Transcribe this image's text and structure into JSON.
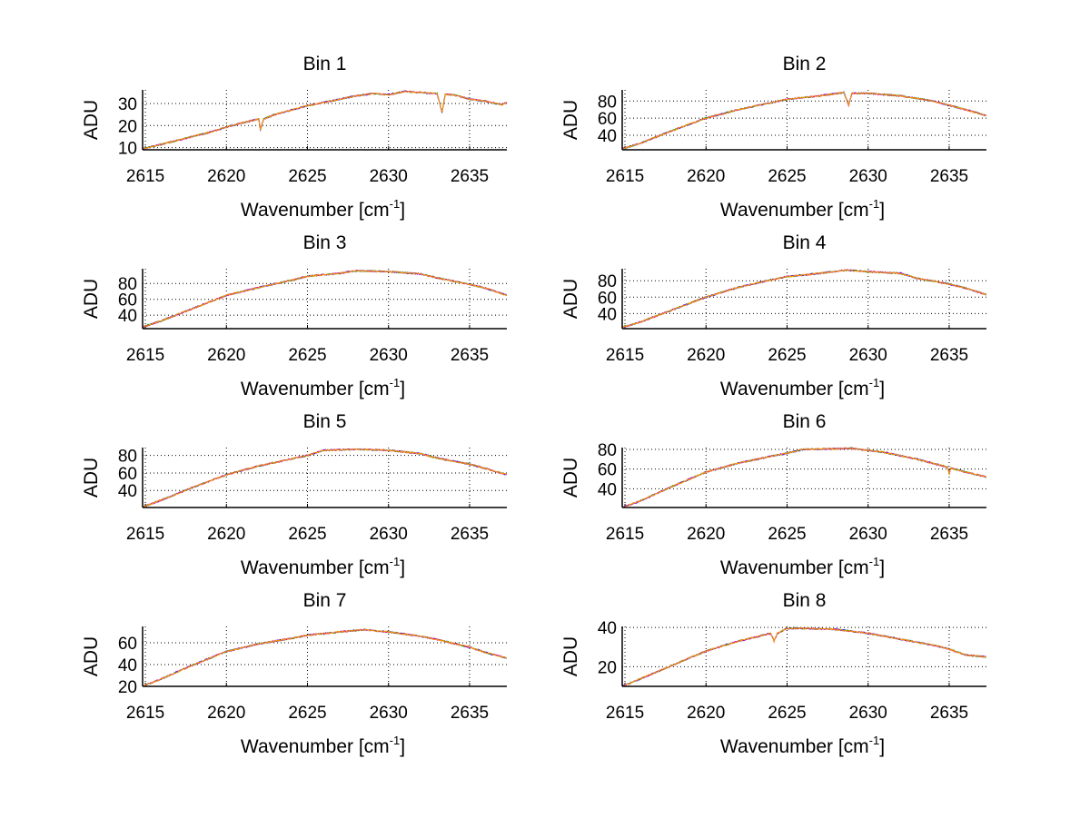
{
  "chart_data": [
    {
      "type": "line",
      "title": "Bin 1",
      "xlabel": "Wavenumber [cm",
      "xlabel_sup": "-1",
      "xlabel_close": "]",
      "ylabel": "ADU",
      "xlim": [
        2614.83,
        2637.3
      ],
      "ylim": [
        9,
        36.2
      ],
      "xticks": [
        2615,
        2620,
        2625,
        2630,
        2635
      ],
      "yticks": [
        10,
        20,
        30
      ],
      "grid": true,
      "x": [
        2614.83,
        2616,
        2617,
        2618,
        2619,
        2620,
        2621,
        2622,
        2622.1,
        2622.3,
        2623,
        2624,
        2625,
        2626,
        2627,
        2628,
        2629,
        2630,
        2631,
        2632,
        2633,
        2633.3,
        2633.5,
        2634,
        2635,
        2636,
        2637,
        2637.3
      ],
      "y": [
        9.5,
        11.5,
        13.3,
        15.2,
        17,
        19.3,
        21.3,
        23,
        18,
        23,
        25,
        27,
        29,
        30.5,
        32,
        33.5,
        34.5,
        34,
        35.5,
        35,
        34.5,
        26,
        34.2,
        34,
        32,
        31,
        29.5,
        30.5
      ]
    },
    {
      "type": "line",
      "title": "Bin 2",
      "xlabel": "Wavenumber [cm",
      "xlabel_sup": "-1",
      "xlabel_close": "]",
      "ylabel": "ADU",
      "xlim": [
        2614.83,
        2637.3
      ],
      "ylim": [
        23,
        93
      ],
      "xticks": [
        2615,
        2620,
        2625,
        2630,
        2635
      ],
      "yticks": [
        40,
        60,
        80
      ],
      "grid": true,
      "x": [
        2614.83,
        2616,
        2618,
        2620,
        2622,
        2624,
        2625,
        2627,
        2628.5,
        2628.8,
        2629,
        2630,
        2632,
        2634,
        2635,
        2636,
        2637.3
      ],
      "y": [
        24,
        31,
        46,
        60,
        70,
        78,
        82,
        86,
        90,
        75,
        89,
        89,
        86,
        80,
        75,
        70,
        63
      ]
    },
    {
      "type": "line",
      "title": "Bin 3",
      "xlabel": "Wavenumber [cm",
      "xlabel_sup": "-1",
      "xlabel_close": "]",
      "ylabel": "ADU",
      "xlim": [
        2614.83,
        2637.3
      ],
      "ylim": [
        23,
        98.6
      ],
      "xticks": [
        2615,
        2620,
        2625,
        2630,
        2635
      ],
      "yticks": [
        40,
        60,
        80
      ],
      "grid": true,
      "x": [
        2614.83,
        2616,
        2618,
        2620,
        2622,
        2624,
        2625,
        2627,
        2628,
        2630,
        2632,
        2633,
        2634,
        2635,
        2636,
        2637.3
      ],
      "y": [
        25,
        33,
        49,
        65,
        75,
        84,
        89,
        93,
        96,
        95,
        92,
        87,
        83,
        79,
        74,
        65
      ]
    },
    {
      "type": "line",
      "title": "Bin 4",
      "xlabel": "Wavenumber [cm",
      "xlabel_sup": "-1",
      "xlabel_close": "]",
      "ylabel": "ADU",
      "xlim": [
        2614.83,
        2637.3
      ],
      "ylim": [
        21.6,
        94.6
      ],
      "xticks": [
        2615,
        2620,
        2625,
        2630,
        2635
      ],
      "yticks": [
        40,
        60,
        80
      ],
      "grid": true,
      "x": [
        2614.83,
        2616,
        2618,
        2620,
        2622,
        2624,
        2625,
        2627,
        2628.7,
        2630,
        2632,
        2633,
        2635,
        2636,
        2637.3
      ],
      "y": [
        23,
        30,
        45,
        60,
        72,
        81,
        85,
        89,
        93,
        91,
        89,
        83,
        76,
        71,
        63
      ]
    },
    {
      "type": "line",
      "title": "Bin 5",
      "xlabel": "Wavenumber [cm",
      "xlabel_sup": "-1",
      "xlabel_close": "]",
      "ylabel": "ADU",
      "xlim": [
        2614.83,
        2637.3
      ],
      "ylim": [
        20.5,
        89
      ],
      "xticks": [
        2615,
        2620,
        2625,
        2630,
        2635
      ],
      "yticks": [
        40,
        60,
        80
      ],
      "grid": true,
      "x": [
        2614.83,
        2616,
        2618,
        2620,
        2622,
        2624,
        2625,
        2626,
        2628,
        2630,
        2632,
        2633,
        2635,
        2636,
        2637.3
      ],
      "y": [
        21,
        29,
        44,
        58,
        68,
        76,
        80,
        86,
        87,
        86,
        82,
        77,
        70,
        65,
        58
      ]
    },
    {
      "type": "line",
      "title": "Bin 6",
      "xlabel": "Wavenumber [cm",
      "xlabel_sup": "-1",
      "xlabel_close": "]",
      "ylabel": "ADU",
      "xlim": [
        2614.83,
        2637.3
      ],
      "ylim": [
        21,
        81.8
      ],
      "xticks": [
        2615,
        2620,
        2625,
        2630,
        2635
      ],
      "yticks": [
        40,
        60,
        80
      ],
      "grid": true,
      "x": [
        2614.83,
        2616,
        2618,
        2620,
        2622,
        2624,
        2625,
        2626,
        2629,
        2631,
        2633,
        2634.9,
        2635,
        2635.1,
        2636,
        2637.3
      ],
      "y": [
        21,
        28,
        43,
        57,
        66,
        73,
        76,
        80,
        81,
        77,
        70,
        62,
        55,
        61,
        57,
        52
      ]
    },
    {
      "type": "line",
      "title": "Bin 7",
      "xlabel": "Wavenumber [cm",
      "xlabel_sup": "-1",
      "xlabel_close": "]",
      "ylabel": "ADU",
      "xlim": [
        2614.83,
        2637.3
      ],
      "ylim": [
        20,
        75
      ],
      "xticks": [
        2615,
        2620,
        2625,
        2630,
        2635
      ],
      "yticks": [
        20,
        40,
        60
      ],
      "grid": true,
      "x": [
        2614.83,
        2616,
        2618,
        2620,
        2622,
        2624,
        2625,
        2627,
        2628.5,
        2630,
        2632,
        2633,
        2635,
        2636,
        2637.3
      ],
      "y": [
        20,
        27,
        40,
        52,
        59,
        64,
        67,
        70,
        72,
        70,
        66,
        63,
        56,
        51,
        46
      ]
    },
    {
      "type": "line",
      "title": "Bin 8",
      "xlabel": "Wavenumber [cm",
      "xlabel_sup": "-1",
      "xlabel_close": "]",
      "ylabel": "ADU",
      "xlim": [
        2614.83,
        2637.3
      ],
      "ylim": [
        10,
        40.5
      ],
      "xticks": [
        2615,
        2620,
        2625,
        2630,
        2635
      ],
      "yticks": [
        20,
        40
      ],
      "grid": true,
      "x": [
        2614.83,
        2616,
        2618,
        2620,
        2622,
        2624,
        2624.2,
        2624.4,
        2625,
        2626,
        2628,
        2630,
        2632,
        2634,
        2635,
        2636,
        2637.3
      ],
      "y": [
        10,
        14,
        21,
        28,
        33,
        37,
        33,
        37,
        39.5,
        39.5,
        39,
        37,
        34,
        31,
        29,
        26,
        25
      ]
    }
  ],
  "series_colors": [
    "#0000ff",
    "#00aa00",
    "#cc00cc",
    "#ff9900"
  ]
}
